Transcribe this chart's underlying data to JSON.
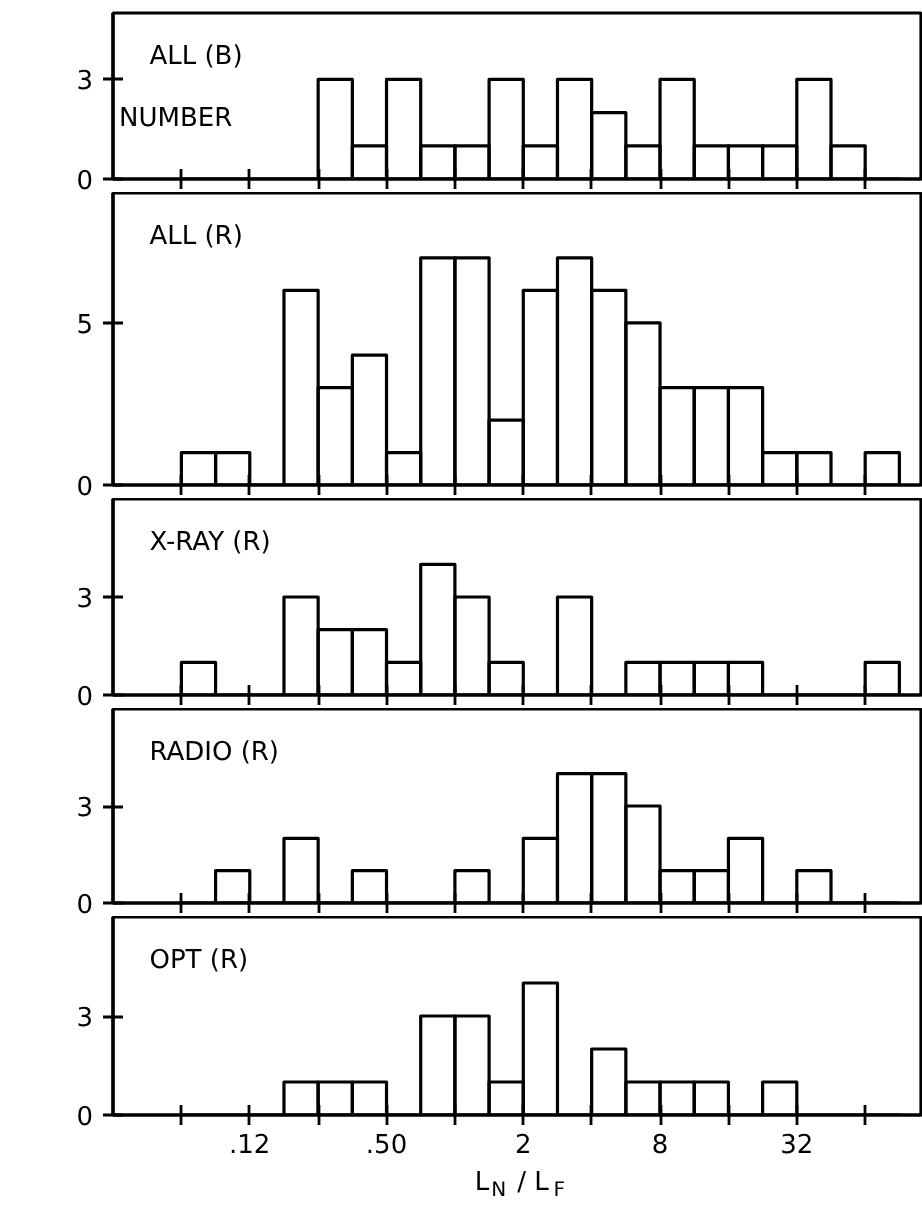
{
  "chart_data": [
    {
      "type": "histogram",
      "title": "ALL (B)",
      "ylabel": "NUMBER",
      "bins": [
        0.0625,
        0.0884,
        0.125,
        0.1768,
        0.25,
        0.3536,
        0.5,
        0.7071,
        1,
        1.4142,
        2,
        2.8284,
        4,
        5.6569,
        8,
        11.314,
        16,
        22.627,
        32,
        45.255,
        64,
        90.51
      ],
      "values": [
        0,
        0,
        0,
        0,
        3,
        1,
        3,
        1,
        1,
        3,
        1,
        3,
        2,
        1,
        3,
        1,
        1,
        1,
        3,
        1,
        0
      ],
      "color": "#000000",
      "log": "x",
      "xlim": [
        0.03125,
        115
      ],
      "ylim": [
        0,
        5
      ],
      "yticks": [
        0,
        3
      ],
      "xticks": [
        {
          "value": 0.0625,
          "label": null
        },
        {
          "value": 0.125,
          "label": null
        },
        {
          "value": 0.25,
          "label": null
        },
        {
          "value": 0.5,
          "label": null
        },
        {
          "value": 1,
          "label": null
        },
        {
          "value": 2,
          "label": null
        },
        {
          "value": 4,
          "label": null
        },
        {
          "value": 8,
          "label": null
        },
        {
          "value": 16,
          "label": null
        },
        {
          "value": 32,
          "label": null
        },
        {
          "value": 64,
          "label": null
        }
      ],
      "tick_labels": "y",
      "grid": false
    },
    {
      "type": "histogram",
      "title": "ALL (R)",
      "bins": [
        0.0625,
        0.0884,
        0.125,
        0.1768,
        0.25,
        0.3536,
        0.5,
        0.7071,
        1,
        1.4142,
        2,
        2.8284,
        4,
        5.6569,
        8,
        11.314,
        16,
        22.627,
        32,
        45.255,
        64,
        90.51
      ],
      "values": [
        1,
        1,
        0,
        6,
        3,
        4,
        1,
        7,
        7,
        2,
        6,
        7,
        6,
        5,
        3,
        3,
        3,
        1,
        1,
        0,
        1
      ],
      "color": "#000000",
      "log": "x",
      "xlim": [
        0.03125,
        115
      ],
      "ylim": [
        0,
        9
      ],
      "yticks": [
        0,
        5
      ],
      "xticks": [
        {
          "value": 0.0625,
          "label": null
        },
        {
          "value": 0.125,
          "label": null
        },
        {
          "value": 0.25,
          "label": null
        },
        {
          "value": 0.5,
          "label": null
        },
        {
          "value": 1,
          "label": null
        },
        {
          "value": 2,
          "label": null
        },
        {
          "value": 4,
          "label": null
        },
        {
          "value": 8,
          "label": null
        },
        {
          "value": 16,
          "label": null
        },
        {
          "value": 32,
          "label": null
        },
        {
          "value": 64,
          "label": null
        }
      ],
      "tick_labels": "y",
      "grid": false
    },
    {
      "type": "histogram",
      "title": "X-RAY (R)",
      "bins": [
        0.0625,
        0.0884,
        0.125,
        0.1768,
        0.25,
        0.3536,
        0.5,
        0.7071,
        1,
        1.4142,
        2,
        2.8284,
        4,
        5.6569,
        8,
        11.314,
        16,
        22.627,
        32,
        45.255,
        64,
        90.51
      ],
      "values": [
        1,
        0,
        0,
        3,
        2,
        2,
        1,
        4,
        3,
        1,
        0,
        3,
        0,
        1,
        1,
        1,
        1,
        0,
        0,
        0,
        1
      ],
      "color": "#000000",
      "log": "x",
      "xlim": [
        0.03125,
        115
      ],
      "ylim": [
        0,
        6
      ],
      "yticks": [
        0,
        3
      ],
      "xticks": [
        {
          "value": 0.0625,
          "label": null
        },
        {
          "value": 0.125,
          "label": null
        },
        {
          "value": 0.25,
          "label": null
        },
        {
          "value": 0.5,
          "label": null
        },
        {
          "value": 1,
          "label": null
        },
        {
          "value": 2,
          "label": null
        },
        {
          "value": 4,
          "label": null
        },
        {
          "value": 8,
          "label": null
        },
        {
          "value": 16,
          "label": null
        },
        {
          "value": 32,
          "label": null
        },
        {
          "value": 64,
          "label": null
        }
      ],
      "tick_labels": "y",
      "grid": false
    },
    {
      "type": "histogram",
      "title": "RADIO (R)",
      "bins": [
        0.0625,
        0.0884,
        0.125,
        0.1768,
        0.25,
        0.3536,
        0.5,
        0.7071,
        1,
        1.4142,
        2,
        2.8284,
        4,
        5.6569,
        8,
        11.314,
        16,
        22.627,
        32,
        45.255,
        64,
        90.51
      ],
      "values": [
        0,
        1,
        0,
        2,
        0,
        1,
        0,
        0,
        1,
        0,
        2,
        4,
        4,
        3,
        1,
        1,
        2,
        0,
        1,
        0,
        0
      ],
      "color": "#000000",
      "log": "x",
      "xlim": [
        0.03125,
        115
      ],
      "ylim": [
        0,
        6
      ],
      "yticks": [
        0,
        3
      ],
      "xticks": [
        {
          "value": 0.0625,
          "label": null
        },
        {
          "value": 0.125,
          "label": null
        },
        {
          "value": 0.25,
          "label": null
        },
        {
          "value": 0.5,
          "label": null
        },
        {
          "value": 1,
          "label": null
        },
        {
          "value": 2,
          "label": null
        },
        {
          "value": 4,
          "label": null
        },
        {
          "value": 8,
          "label": null
        },
        {
          "value": 16,
          "label": null
        },
        {
          "value": 32,
          "label": null
        },
        {
          "value": 64,
          "label": null
        }
      ],
      "tick_labels": "y",
      "grid": false
    },
    {
      "type": "histogram",
      "title": "OPT (R)",
      "xlabel": "L$_{N}$ / L$_{F}$",
      "bins": [
        0.0625,
        0.0884,
        0.125,
        0.1768,
        0.25,
        0.3536,
        0.5,
        0.7071,
        1,
        1.4142,
        2,
        2.8284,
        4,
        5.6569,
        8,
        11.314,
        16,
        22.627,
        32,
        45.255,
        64,
        90.51
      ],
      "values": [
        0,
        0,
        0,
        1,
        1,
        1,
        0,
        3,
        3,
        1,
        4,
        0,
        2,
        1,
        1,
        1,
        0,
        1,
        0,
        0,
        0
      ],
      "color": "#000000",
      "log": "x",
      "xlim": [
        0.03125,
        115
      ],
      "ylim": [
        0,
        6
      ],
      "yticks": [
        0,
        3
      ],
      "xticks": [
        {
          "value": 0.0625,
          "label": null
        },
        {
          "value": 0.125,
          "label": ".12"
        },
        {
          "value": 0.25,
          "label": null
        },
        {
          "value": 0.5,
          "label": ".50"
        },
        {
          "value": 1,
          "label": null
        },
        {
          "value": 2,
          "label": "2"
        },
        {
          "value": 4,
          "label": null
        },
        {
          "value": 8,
          "label": "8"
        },
        {
          "value": 16,
          "label": null
        },
        {
          "value": 32,
          "label": "32"
        },
        {
          "value": 64,
          "label": null
        }
      ],
      "grid": false
    }
  ]
}
